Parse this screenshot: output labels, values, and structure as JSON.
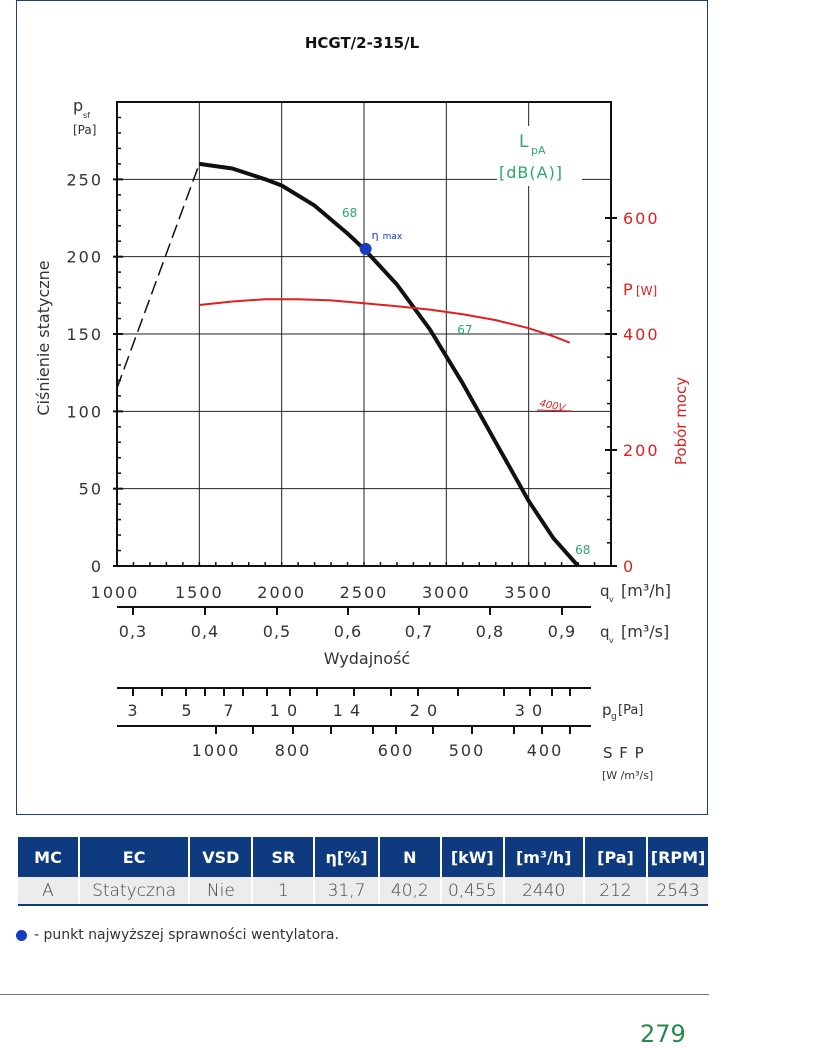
{
  "chart_data": {
    "type": "line",
    "title": "HCGT/2-315/L",
    "ylabel_symbol": "p",
    "ylabel_sub": "sf",
    "ylabel_unit": "[Pa]",
    "ylabel_text": "Ciśnienie statyczne",
    "y_ticks": [
      "0",
      "50",
      "100",
      "150",
      "200",
      "250"
    ],
    "ylim": [
      0,
      300
    ],
    "x_ticks": [
      "1000",
      "1500",
      "2000",
      "2500",
      "3000",
      "3500"
    ],
    "xlim": [
      1000,
      4000
    ],
    "x_unit_symbol": "q",
    "x_unit_sub": "v",
    "x_unit": "[m³/h]",
    "x2_ticks": [
      "0,3",
      "0,4",
      "0,5",
      "0,6",
      "0,7",
      "0,8",
      "0,9"
    ],
    "x2_unit": "[m³/s]",
    "xlabel_text": "Wydajność",
    "x3_ticks": [
      "3",
      "5",
      "7",
      "1 0",
      "1 4",
      "2 0",
      "3 0"
    ],
    "x3_symbol": "p",
    "x3_sub": "g",
    "x3_unit": "[Pa]",
    "x4_ticks": [
      "1000",
      "800",
      "600",
      "500",
      "400"
    ],
    "x4_label": "S F P",
    "x4_unit": "[W /m³/s]",
    "power_symbol": "P",
    "power_unit": "[W]",
    "power_label": "Pobór mocy",
    "power_ticks": [
      "0",
      "200",
      "400",
      "600"
    ],
    "power_lim": [
      0,
      800
    ],
    "sound_label": "L",
    "sound_sub": "pA",
    "sound_unit": "[dB(A)]",
    "eta_label": "η",
    "eta_sub": "max",
    "voltage_label": "400V",
    "colors": {
      "pressure": "#111111",
      "power": "#e02020",
      "sound": "#2aa86a",
      "eta": "#1a3ac0",
      "frame": "#1f3f7a"
    },
    "series": [
      {
        "name": "pressure",
        "x": [
          1500,
          1700,
          1900,
          2000,
          2200,
          2400,
          2500,
          2700,
          2900,
          3100,
          3300,
          3500,
          3650,
          3800
        ],
        "values": [
          260,
          257,
          250,
          246,
          233,
          215,
          205,
          182,
          153,
          118,
          80,
          42,
          18,
          0
        ]
      },
      {
        "name": "stall",
        "x": [
          1000,
          1500
        ],
        "values": [
          115,
          260
        ]
      },
      {
        "name": "power_400V",
        "x": [
          1500,
          1700,
          1900,
          2100,
          2300,
          2500,
          2700,
          2900,
          3100,
          3300,
          3500,
          3650,
          3750
        ],
        "values": [
          450,
          456,
          460,
          460,
          458,
          453,
          448,
          442,
          434,
          424,
          410,
          396,
          385
        ]
      }
    ],
    "sound_points": [
      {
        "x": 2500,
        "y": 205,
        "label": "68"
      },
      {
        "x": 3200,
        "y": 132,
        "label": "67"
      },
      {
        "x": 3800,
        "y": 0,
        "label": "68"
      }
    ],
    "eta_point": {
      "x": 2510,
      "y": 205
    }
  },
  "table": {
    "headers": [
      "MC",
      "EC",
      "VSD",
      "SR",
      "η[%]",
      "N",
      "[kW]",
      "[m³/h]",
      "[Pa]",
      "[RPM]"
    ],
    "row": [
      "A",
      "Statyczna",
      "Nie",
      "1",
      "31,7",
      "40,2",
      "0,455",
      "2440",
      "212",
      "2543"
    ]
  },
  "legend_note": "- punkt najwyższej sprawności wentylatora.",
  "page_number": "279"
}
